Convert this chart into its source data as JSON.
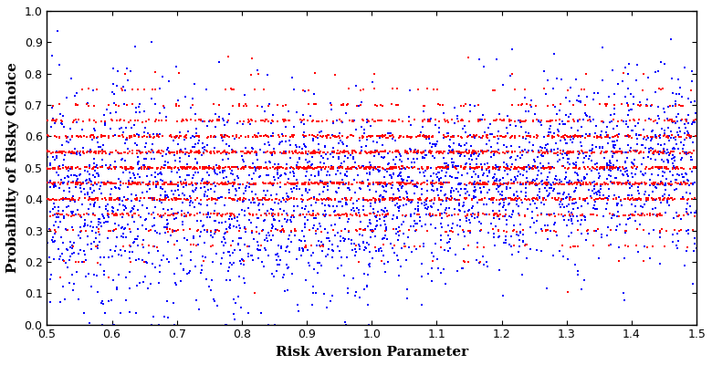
{
  "title": "",
  "xlabel": "Risk Aversion Parameter",
  "ylabel": "Probability of Risky Choice",
  "xlim": [
    0.5,
    1.5
  ],
  "ylim": [
    0,
    1
  ],
  "xticks": [
    0.5,
    0.6,
    0.7,
    0.8,
    0.9,
    1.0,
    1.1,
    1.2,
    1.3,
    1.4,
    1.5
  ],
  "yticks": [
    0,
    0.1,
    0.2,
    0.3,
    0.4,
    0.5,
    0.6,
    0.7,
    0.8,
    0.9,
    1
  ],
  "blue_color": "#0000FF",
  "red_color": "#FF0000",
  "marker_size": 4,
  "n_blue": 3000,
  "n_red": 3000,
  "seed": 42,
  "figsize": [
    7.8,
    4.0
  ],
  "dpi": 100,
  "axis_label_fontsize": 11,
  "tick_fontsize": 9
}
